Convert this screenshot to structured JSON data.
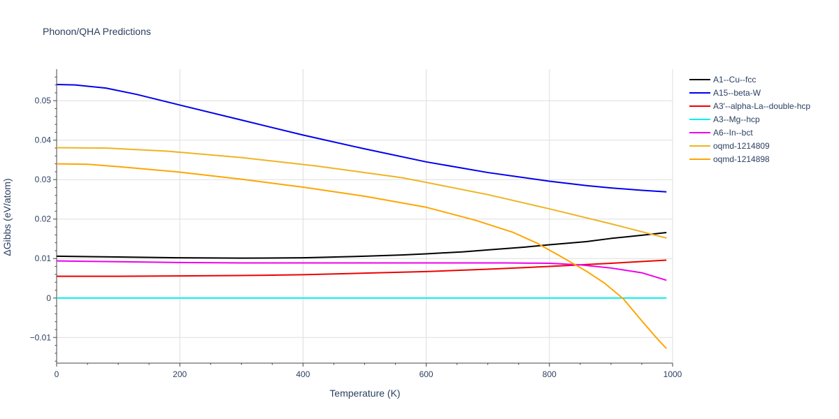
{
  "chart_data": {
    "type": "line",
    "title": "Phonon/QHA Predictions",
    "xlabel": "Temperature (K)",
    "ylabel": "ΔGibbs (eV/atom)",
    "xlim": [
      0,
      1000
    ],
    "ylim": [
      -0.0165,
      0.058
    ],
    "xticks": [
      0,
      200,
      400,
      600,
      800,
      1000
    ],
    "xtick_labels": [
      "0",
      "200",
      "400",
      "600",
      "800",
      "1000"
    ],
    "yticks": [
      -0.01,
      0,
      0.01,
      0.02,
      0.03,
      0.04,
      0.05
    ],
    "ytick_labels": [
      "−0.01",
      "0",
      "0.01",
      "0.02",
      "0.03",
      "0.04",
      "0.05"
    ],
    "grid": true,
    "legend_position": "top-right",
    "series": [
      {
        "name": "A1--Cu--fcc",
        "color": "#000000",
        "x": [
          0,
          100,
          200,
          300,
          400,
          430,
          500,
          560,
          600,
          660,
          700,
          760,
          800,
          860,
          900,
          950,
          990
        ],
        "y": [
          0.0106,
          0.0104,
          0.0102,
          0.0101,
          0.0102,
          0.0103,
          0.0106,
          0.0109,
          0.0112,
          0.0117,
          0.0122,
          0.0129,
          0.0135,
          0.0143,
          0.0151,
          0.0159,
          0.0166
        ]
      },
      {
        "name": "A15--beta-W",
        "color": "#0000ee",
        "x": [
          0,
          30,
          80,
          130,
          200,
          300,
          400,
          500,
          600,
          700,
          800,
          860,
          900,
          950,
          990
        ],
        "y": [
          0.0541,
          0.054,
          0.0532,
          0.0516,
          0.0489,
          0.0451,
          0.0413,
          0.0378,
          0.0345,
          0.0318,
          0.0296,
          0.0285,
          0.0279,
          0.0273,
          0.0269
        ]
      },
      {
        "name": "A3'--alpha-La--double-hcp",
        "color": "#ee0000",
        "x": [
          0,
          100,
          200,
          300,
          400,
          500,
          600,
          700,
          800,
          900,
          990
        ],
        "y": [
          0.0055,
          0.0055,
          0.0056,
          0.0057,
          0.0059,
          0.0063,
          0.0067,
          0.0073,
          0.008,
          0.0088,
          0.0096
        ]
      },
      {
        "name": "A3--Mg--hcp",
        "color": "#00eeee",
        "x": [
          0,
          990
        ],
        "y": [
          0,
          0
        ]
      },
      {
        "name": "A6--In--bct",
        "color": "#ee00ee",
        "x": [
          0,
          100,
          200,
          300,
          400,
          500,
          600,
          730,
          800,
          850,
          900,
          950,
          990
        ],
        "y": [
          0.0094,
          0.0092,
          0.009,
          0.0089,
          0.0089,
          0.0089,
          0.0089,
          0.0089,
          0.0088,
          0.0084,
          0.0076,
          0.0064,
          0.0045
        ]
      },
      {
        "name": "oqmd-1214809",
        "color": "#eeb422",
        "x": [
          0,
          80,
          180,
          300,
          420,
          560,
          600,
          700,
          800,
          900,
          990
        ],
        "y": [
          0.0381,
          0.038,
          0.0372,
          0.0356,
          0.0335,
          0.0305,
          0.0293,
          0.0262,
          0.0226,
          0.0188,
          0.0152
        ]
      },
      {
        "name": "oqmd-1214898",
        "color": "#ffa500",
        "x": [
          0,
          50,
          100,
          200,
          300,
          400,
          500,
          600,
          680,
          740,
          780,
          820,
          860,
          890,
          920,
          950,
          975,
          990
        ],
        "y": [
          0.034,
          0.0339,
          0.0333,
          0.0319,
          0.0301,
          0.0281,
          0.0258,
          0.023,
          0.0197,
          0.0167,
          0.0139,
          0.0104,
          0.0068,
          0.0037,
          -0.0002,
          -0.0058,
          -0.0103,
          -0.0128
        ]
      }
    ]
  }
}
